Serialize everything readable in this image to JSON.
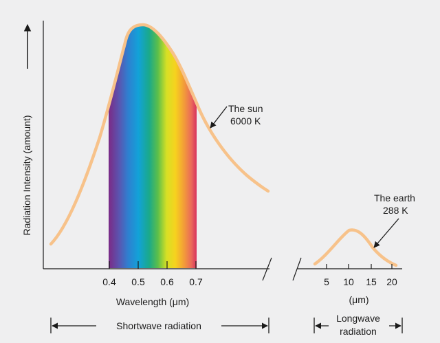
{
  "y_axis_label": "Radiation Intensity (amount)",
  "x_axis_label": "Wavelength (μm)",
  "sun_ticks": [
    "0.4",
    "0.5",
    "0.6",
    "0.7"
  ],
  "earth_ticks": [
    "5",
    "10",
    "15",
    "20"
  ],
  "earth_unit": "(μm)",
  "sun_label": {
    "line1": "The sun",
    "line2": "6000 K"
  },
  "earth_label": {
    "line1": "The earth",
    "line2": "288 K"
  },
  "bands": {
    "shortwave": "Shortwave radiation",
    "longwave_line1": "Longwave",
    "longwave_line2": "radiation"
  },
  "colors": {
    "background": "#efeff0",
    "curve": "#f7c28a",
    "axis": "#1a1a1a"
  }
}
